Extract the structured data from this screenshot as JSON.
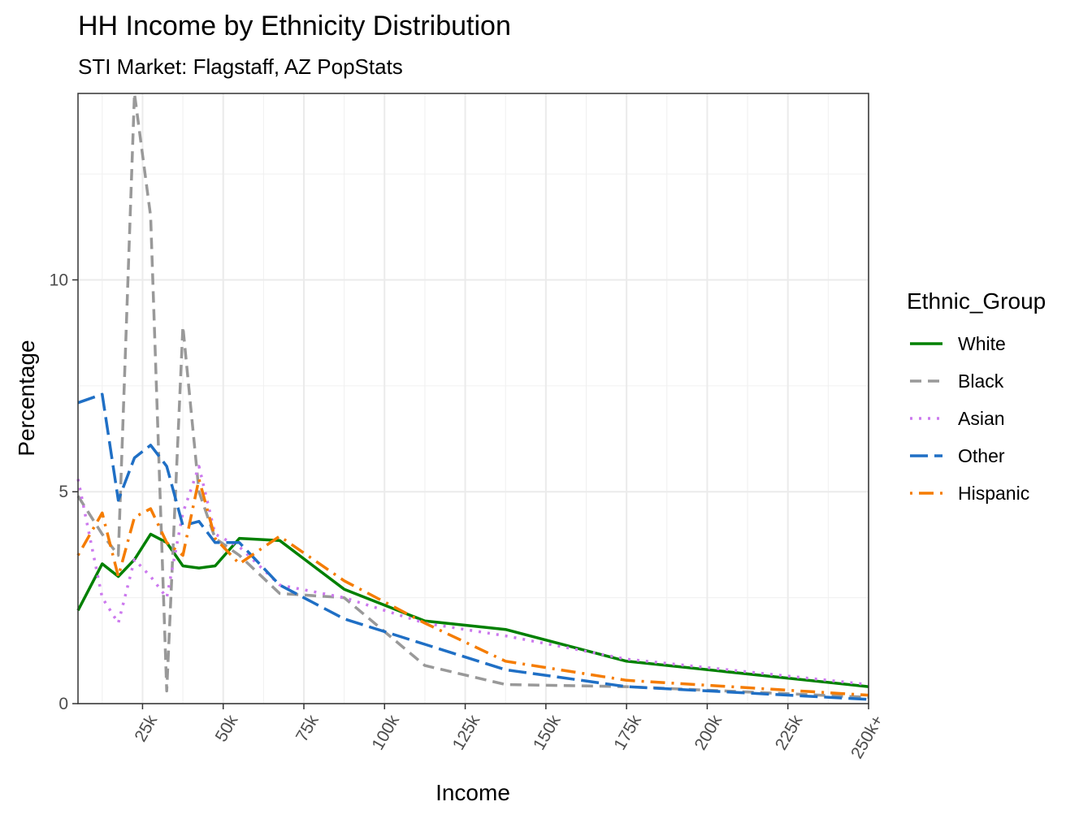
{
  "chart_data": {
    "type": "line",
    "title": "HH Income by Ethnicity Distribution",
    "subtitle": "STI Market: Flagstaff, AZ PopStats",
    "xlabel": "Income",
    "ylabel": "Percentage",
    "xlim": [
      5,
      250
    ],
    "ylim": [
      0,
      14.4
    ],
    "x_ticks": [
      25,
      50,
      75,
      100,
      125,
      150,
      175,
      200,
      225,
      250
    ],
    "x_tick_labels": [
      "25k",
      "50k",
      "75k",
      "100k",
      "125k",
      "150k",
      "175k",
      "200k",
      "225k",
      "250k+"
    ],
    "y_ticks": [
      0,
      5,
      10
    ],
    "y_tick_labels": [
      "0",
      "5",
      "10"
    ],
    "grid": true,
    "legend_title": "Ethnic_Group",
    "legend_position": "right",
    "x": [
      5,
      12.5,
      17.5,
      22.5,
      27.5,
      32.5,
      37.5,
      42.5,
      47.5,
      55,
      67.5,
      87.5,
      112.5,
      137.5,
      175,
      250
    ],
    "series": [
      {
        "name": "White",
        "color": "#008000",
        "dash": "solid",
        "values": [
          2.2,
          3.3,
          3.0,
          3.4,
          4.0,
          3.8,
          3.25,
          3.2,
          3.25,
          3.9,
          3.85,
          2.7,
          1.95,
          1.75,
          1.0,
          0.4
        ]
      },
      {
        "name": "Black",
        "color": "#999999",
        "dash": "dashed",
        "values": [
          4.9,
          4.0,
          3.5,
          14.4,
          11.5,
          0.3,
          8.9,
          5.0,
          3.9,
          3.5,
          2.6,
          2.5,
          0.9,
          0.45,
          0.4,
          0.15
        ]
      },
      {
        "name": "Asian",
        "color": "#cc79ee",
        "dash": "dotted",
        "values": [
          5.3,
          2.5,
          1.9,
          3.4,
          3.0,
          2.5,
          4.5,
          5.6,
          4.0,
          3.7,
          2.8,
          2.5,
          1.9,
          1.6,
          1.05,
          0.45
        ]
      },
      {
        "name": "Other",
        "color": "#1f6fc5",
        "dash": "longdash",
        "values": [
          7.1,
          7.3,
          4.8,
          5.8,
          6.1,
          5.6,
          4.2,
          4.3,
          3.8,
          3.8,
          2.8,
          2.0,
          1.4,
          0.8,
          0.4,
          0.1
        ]
      },
      {
        "name": "Hispanic",
        "color": "#f57c00",
        "dash": "dotdash",
        "values": [
          3.5,
          4.5,
          3.0,
          4.4,
          4.6,
          3.8,
          3.5,
          5.3,
          3.9,
          3.3,
          3.95,
          2.9,
          1.9,
          1.0,
          0.55,
          0.2
        ]
      }
    ]
  }
}
